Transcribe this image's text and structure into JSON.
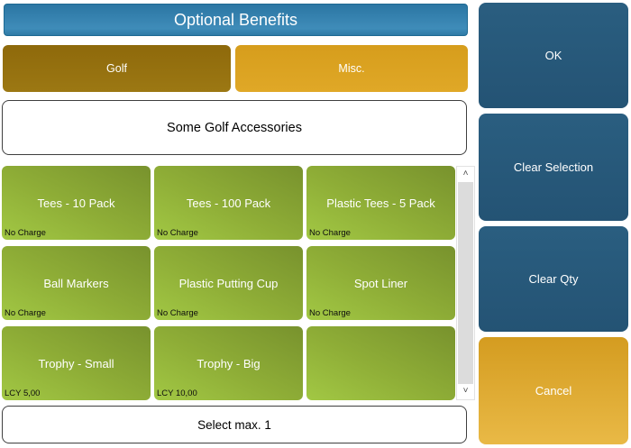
{
  "header": {
    "title": "Optional Benefits"
  },
  "tabs": [
    {
      "label": "Golf",
      "active": true
    },
    {
      "label": "Misc.",
      "active": false
    }
  ],
  "info": {
    "label": "Some Golf Accessories"
  },
  "grid": {
    "items": [
      {
        "label": "Tees - 10 Pack",
        "price": "No Charge"
      },
      {
        "label": "Tees - 100 Pack",
        "price": "No Charge"
      },
      {
        "label": "Plastic Tees - 5 Pack",
        "price": "No Charge"
      },
      {
        "label": "Ball Markers",
        "price": "No Charge"
      },
      {
        "label": "Plastic Putting Cup",
        "price": "No Charge"
      },
      {
        "label": "Spot Liner",
        "price": "No Charge"
      },
      {
        "label": "Trophy - Small",
        "price": "LCY 5,00"
      },
      {
        "label": "Trophy - Big",
        "price": "LCY 10,00"
      },
      {
        "label": "",
        "price": ""
      }
    ]
  },
  "scrollbar": {
    "up_glyph": "˄",
    "down_glyph": "˅"
  },
  "footer": {
    "label": "Select max. 1"
  },
  "actions": [
    {
      "label": "OK"
    },
    {
      "label": "Clear Selection"
    },
    {
      "label": "Clear Qty"
    },
    {
      "label": "Cancel"
    }
  ],
  "colors": {
    "header_blue_top": "#2b76a3",
    "header_blue_bottom": "#3f8cb9",
    "tab_golf_brown": "#96700f",
    "tab_misc_gold": "#dda321",
    "tile_green_dark": "#78922d",
    "tile_green_light": "#a2c844",
    "action_blue": "#265878",
    "cancel_gold_top": "#d49c20",
    "cancel_gold_bottom": "#e9b946",
    "scroll_thumb_gray": "#dcdcdc"
  }
}
